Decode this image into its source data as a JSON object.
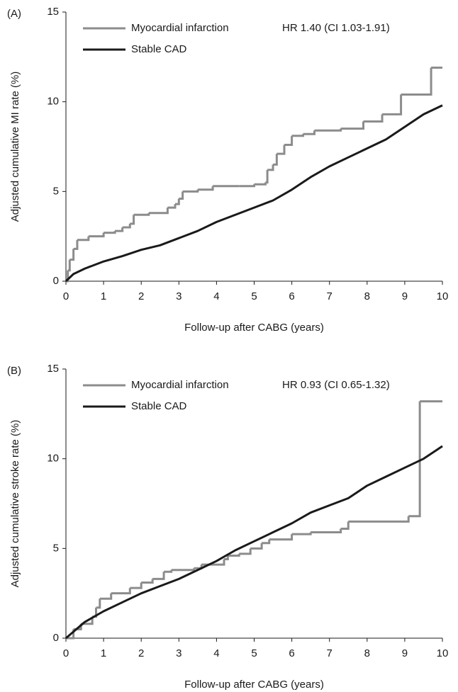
{
  "chart_data": [
    {
      "type": "line",
      "label": "(A)",
      "annotation": "HR 1.40 (CI 1.03-1.91)",
      "xlabel": "Follow-up after CABG (years)",
      "ylabel": "Adjusted cumulative MI rate (%)",
      "xlim": [
        0,
        10
      ],
      "ylim": [
        0,
        15
      ],
      "xticks": [
        0,
        1,
        2,
        3,
        4,
        5,
        6,
        7,
        8,
        9,
        10
      ],
      "yticks": [
        0,
        5,
        10,
        15
      ],
      "series": [
        {
          "name": "Myocardial infarction",
          "color": "#8c8c8c",
          "step": true,
          "x": [
            0,
            0.05,
            0.1,
            0.2,
            0.3,
            0.6,
            1,
            1.3,
            1.5,
            1.7,
            1.8,
            2.2,
            2.7,
            2.9,
            3.0,
            3.1,
            3.5,
            3.9,
            4.6,
            5.0,
            5.3,
            5.35,
            5.5,
            5.6,
            5.8,
            6.0,
            6.3,
            6.6,
            7.3,
            7.9,
            8.4,
            8.9,
            9.7,
            10
          ],
          "values": [
            0,
            0.6,
            1.2,
            1.8,
            2.3,
            2.5,
            2.7,
            2.8,
            3.0,
            3.2,
            3.7,
            3.8,
            4.1,
            4.3,
            4.6,
            5.0,
            5.1,
            5.3,
            5.3,
            5.4,
            5.5,
            6.2,
            6.5,
            7.1,
            7.6,
            8.1,
            8.2,
            8.4,
            8.5,
            8.9,
            9.3,
            10.4,
            11.9,
            11.9
          ]
        },
        {
          "name": "Stable CAD",
          "color": "#1a1a1a",
          "step": false,
          "x": [
            0,
            0.2,
            0.5,
            1,
            1.5,
            2,
            2.5,
            3,
            3.5,
            4,
            4.5,
            5,
            5.5,
            6,
            6.5,
            7,
            7.5,
            8,
            8.5,
            9,
            9.5,
            10
          ],
          "values": [
            0,
            0.4,
            0.7,
            1.1,
            1.4,
            1.75,
            2.0,
            2.4,
            2.8,
            3.3,
            3.7,
            4.1,
            4.5,
            5.1,
            5.8,
            6.4,
            6.9,
            7.4,
            7.9,
            8.6,
            9.3,
            9.8
          ]
        }
      ]
    },
    {
      "type": "line",
      "label": "(B)",
      "annotation": "HR 0.93 (CI 0.65-1.32)",
      "xlabel": "Follow-up after CABG (years)",
      "ylabel": "Adjusted cumulative stroke rate (%)",
      "xlim": [
        0,
        10
      ],
      "ylim": [
        0,
        15
      ],
      "xticks": [
        0,
        1,
        2,
        3,
        4,
        5,
        6,
        7,
        8,
        9,
        10
      ],
      "yticks": [
        0,
        5,
        10,
        15
      ],
      "series": [
        {
          "name": "Myocardial infarction",
          "color": "#8c8c8c",
          "step": true,
          "x": [
            0,
            0.2,
            0.4,
            0.7,
            0.8,
            0.9,
            1.2,
            1.7,
            2.0,
            2.3,
            2.6,
            2.8,
            3.4,
            3.6,
            4.2,
            4.3,
            4.6,
            4.9,
            5.2,
            5.4,
            6.0,
            6.5,
            7.3,
            7.5,
            9.1,
            9.4,
            10
          ],
          "values": [
            0,
            0.5,
            0.8,
            1.2,
            1.7,
            2.2,
            2.5,
            2.8,
            3.1,
            3.3,
            3.7,
            3.8,
            3.9,
            4.1,
            4.4,
            4.6,
            4.7,
            5.0,
            5.3,
            5.5,
            5.8,
            5.9,
            6.1,
            6.5,
            6.8,
            13.2,
            13.2
          ]
        },
        {
          "name": "Stable CAD",
          "color": "#1a1a1a",
          "step": false,
          "x": [
            0,
            0.5,
            1,
            1.5,
            2,
            2.5,
            3,
            3.5,
            4,
            4.5,
            5,
            5.5,
            6,
            6.5,
            7,
            7.5,
            8,
            8.5,
            9,
            9.5,
            10
          ],
          "values": [
            0,
            0.9,
            1.5,
            2.0,
            2.5,
            2.9,
            3.3,
            3.8,
            4.3,
            4.9,
            5.4,
            5.9,
            6.4,
            7.0,
            7.4,
            7.8,
            8.5,
            9.0,
            9.5,
            10.0,
            10.7
          ]
        }
      ]
    }
  ]
}
